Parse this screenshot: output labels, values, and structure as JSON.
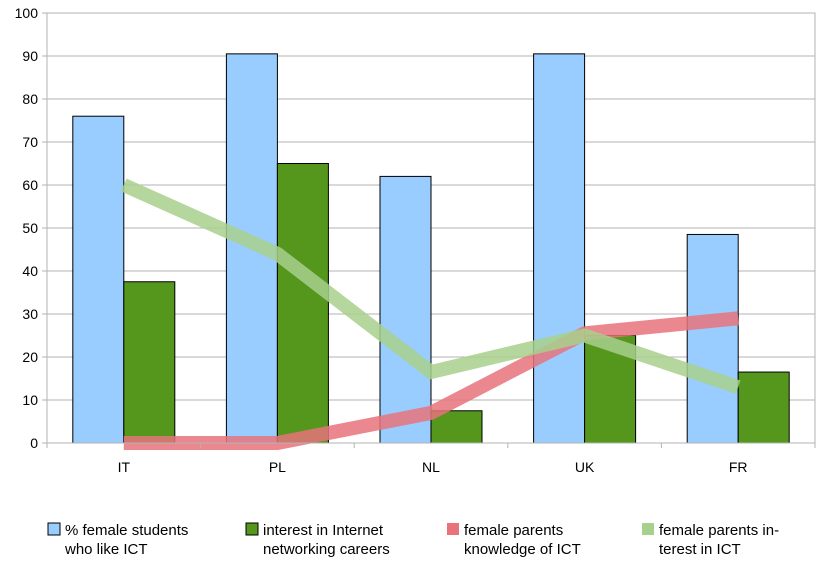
{
  "chart_data": {
    "type": "bar",
    "categories": [
      "IT",
      "PL",
      "NL",
      "UK",
      "FR"
    ],
    "series": [
      {
        "name": "% female students who like ICT",
        "kind": "bar",
        "color": "#99ccff",
        "values": [
          76,
          90.5,
          62,
          90.5,
          48.5
        ]
      },
      {
        "name": "interest in Internet networking careers",
        "kind": "bar",
        "color": "#55961c",
        "values": [
          37.5,
          65,
          7.5,
          25,
          16.5
        ]
      },
      {
        "name": "female parents knowledge of ICT",
        "kind": "line",
        "color": "#e8737b",
        "values": [
          0,
          0,
          7,
          25.5,
          29
        ]
      },
      {
        "name": "female parents interest in ICT",
        "kind": "line",
        "color": "#a8d08d",
        "values": [
          60,
          44,
          16.5,
          25,
          13
        ]
      }
    ],
    "yticks": [
      "0",
      "10",
      "20",
      "30",
      "40",
      "50",
      "60",
      "70",
      "80",
      "90",
      "100"
    ],
    "ylim": [
      0,
      100
    ],
    "grid": true,
    "legend_position": "bottom",
    "legend": [
      [
        "% female students",
        "who like ICT"
      ],
      [
        "interest in Internet",
        "networking careers"
      ],
      [
        "female parents",
        "knowledge of ICT"
      ],
      [
        "female parents in-",
        "terest in ICT"
      ]
    ]
  }
}
